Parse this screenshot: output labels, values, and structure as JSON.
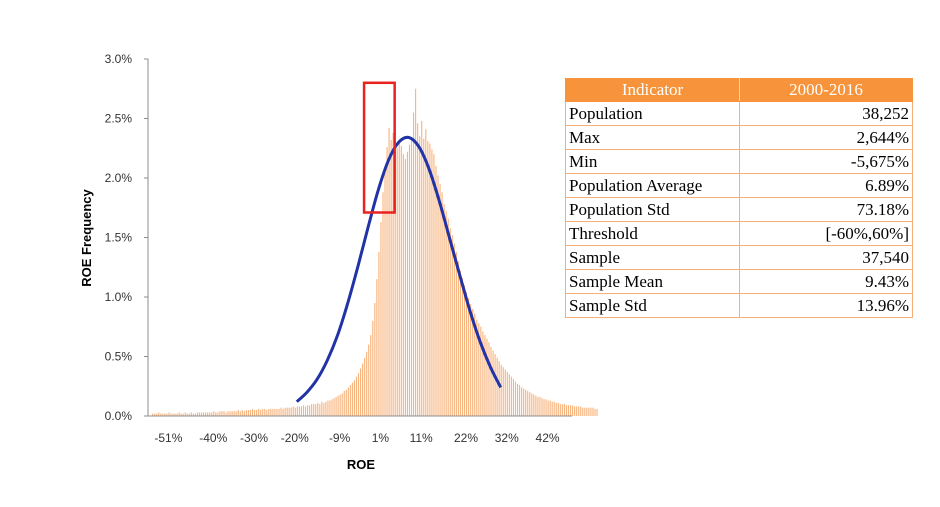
{
  "chart_data": {
    "type": "bar",
    "xlabel": "ROE",
    "ylabel": "ROE Frequency",
    "x_tick_labels": [
      "-51%",
      "-40%",
      "-30%",
      "-20%",
      "-9%",
      "1%",
      "11%",
      "22%",
      "32%",
      "42%"
    ],
    "x_ticks": [
      -51,
      -40,
      -30,
      -20,
      -9,
      1,
      11,
      22,
      32,
      42
    ],
    "xlim": [
      -56,
      48
    ],
    "y_tick_labels": [
      "0.0%",
      "0.5%",
      "1.0%",
      "1.5%",
      "2.0%",
      "2.5%",
      "3.0%"
    ],
    "ylim": [
      0,
      3.0
    ],
    "bar_color": "#f7b47e",
    "series": [
      {
        "type": "bar",
        "x_start": -55,
        "x_step": 0.5,
        "values": [
          0.02,
          0.02,
          0.02,
          0.03,
          0.02,
          0.02,
          0.02,
          0.02,
          0.03,
          0.02,
          0.02,
          0.02,
          0.02,
          0.03,
          0.02,
          0.02,
          0.03,
          0.02,
          0.02,
          0.03,
          0.02,
          0.02,
          0.03,
          0.03,
          0.03,
          0.03,
          0.03,
          0.03,
          0.03,
          0.03,
          0.04,
          0.03,
          0.03,
          0.04,
          0.04,
          0.04,
          0.03,
          0.04,
          0.04,
          0.04,
          0.04,
          0.04,
          0.05,
          0.04,
          0.05,
          0.04,
          0.05,
          0.05,
          0.05,
          0.06,
          0.05,
          0.05,
          0.06,
          0.05,
          0.06,
          0.06,
          0.05,
          0.06,
          0.06,
          0.06,
          0.06,
          0.06,
          0.06,
          0.07,
          0.06,
          0.07,
          0.07,
          0.07,
          0.07,
          0.08,
          0.07,
          0.08,
          0.08,
          0.08,
          0.09,
          0.08,
          0.09,
          0.09,
          0.1,
          0.1,
          0.1,
          0.11,
          0.1,
          0.12,
          0.11,
          0.12,
          0.13,
          0.13,
          0.14,
          0.15,
          0.16,
          0.17,
          0.18,
          0.19,
          0.21,
          0.22,
          0.24,
          0.26,
          0.28,
          0.3,
          0.33,
          0.36,
          0.4,
          0.44,
          0.49,
          0.54,
          0.6,
          0.68,
          0.8,
          0.95,
          1.15,
          1.38,
          1.63,
          1.88,
          2.1,
          2.26,
          2.42,
          2.32,
          2.38,
          2.29,
          2.25,
          2.32,
          2.27,
          2.2,
          2.16,
          2.22,
          2.28,
          2.34,
          2.55,
          2.75,
          2.46,
          2.35,
          2.48,
          2.33,
          2.41,
          2.31,
          2.29,
          2.24,
          2.2,
          2.1,
          2.02,
          1.95,
          1.88,
          1.78,
          1.72,
          1.66,
          1.58,
          1.52,
          1.45,
          1.38,
          1.3,
          1.22,
          1.16,
          1.1,
          1.04,
          0.99,
          0.94,
          0.9,
          0.86,
          0.81,
          0.78,
          0.75,
          0.71,
          0.68,
          0.65,
          0.62,
          0.58,
          0.55,
          0.52,
          0.49,
          0.46,
          0.43,
          0.41,
          0.39,
          0.37,
          0.35,
          0.33,
          0.31,
          0.29,
          0.27,
          0.26,
          0.24,
          0.23,
          0.22,
          0.21,
          0.2,
          0.19,
          0.18,
          0.17,
          0.16,
          0.16,
          0.15,
          0.14,
          0.14,
          0.13,
          0.13,
          0.12,
          0.12,
          0.11,
          0.11,
          0.1,
          0.1,
          0.1,
          0.09,
          0.09,
          0.09,
          0.09,
          0.08,
          0.08,
          0.08,
          0.08,
          0.07,
          0.07,
          0.07,
          0.07,
          0.07,
          0.07,
          0.06,
          0.06
        ]
      },
      {
        "type": "line",
        "color": "#2133a6",
        "x": [
          -19.5,
          -17,
          -14.5,
          -12,
          -9.5,
          -7,
          -4.5,
          -2,
          0.5,
          3,
          5.5,
          8,
          10.5,
          13,
          15.5,
          18,
          20.5,
          23,
          25.5,
          28,
          30.5
        ],
        "values": [
          0.12,
          0.2,
          0.31,
          0.47,
          0.68,
          0.95,
          1.26,
          1.59,
          1.9,
          2.15,
          2.3,
          2.34,
          2.26,
          2.07,
          1.8,
          1.49,
          1.18,
          0.88,
          0.62,
          0.41,
          0.24
        ]
      }
    ],
    "annotation_box": {
      "color": "#e8231f",
      "x0": -3,
      "x1": 4.5,
      "y0": 1.71,
      "y1": 2.8
    }
  },
  "table": {
    "header": [
      "Indicator",
      "2000-2016"
    ],
    "rows": [
      [
        "Population",
        "38,252"
      ],
      [
        "Max",
        "2,644%"
      ],
      [
        "Min",
        "-5,675%"
      ],
      [
        "Population Average",
        "6.89%"
      ],
      [
        "Population Std",
        "73.18%"
      ],
      [
        "Threshold",
        "[-60%,60%]"
      ],
      [
        "Sample",
        "37,540"
      ],
      [
        "Sample Mean",
        "9.43%"
      ],
      [
        "Sample Std",
        "13.96%"
      ]
    ]
  },
  "colors": {
    "header_bg": "#f7943b",
    "cell_border": "#f4b078"
  }
}
